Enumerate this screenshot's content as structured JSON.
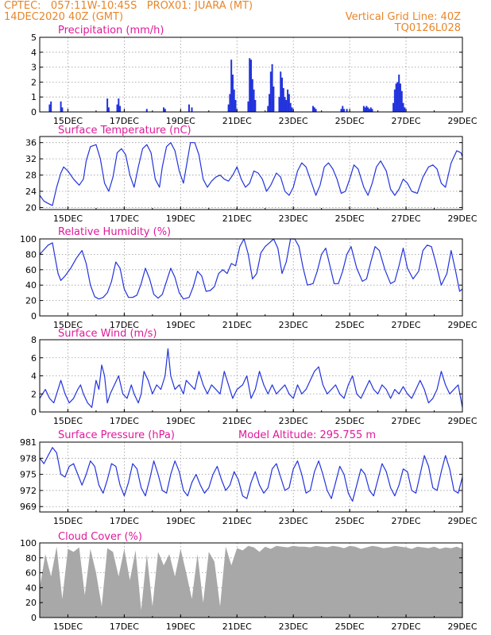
{
  "header": {
    "left_line1": "CPTEC:   057:11W-10:45S   PROX01: JUARA (MT)",
    "left_line2": "14DEC2020 40Z (GMT)",
    "right_line1": "Vertical Grid Line: 40Z",
    "right_line2": "TQ0126L028"
  },
  "colors": {
    "title": "#e0199a",
    "series": "#2233dd",
    "cloud": "#a8a8a8",
    "header": "#e8862a",
    "grid": "#9a9a9a"
  },
  "x_axis": {
    "ticks": [
      "15DEC",
      "17DEC",
      "19DEC",
      "21DEC",
      "23DEC",
      "25DEC",
      "27DEC",
      "29DEC"
    ],
    "tick_days": [
      15,
      17,
      19,
      21,
      23,
      25,
      27,
      29
    ],
    "range_days": [
      14.0,
      29.0
    ]
  },
  "chart_data": [
    {
      "type": "bar",
      "title": "Precipitation (mm/h)",
      "ylim": [
        0,
        5
      ],
      "yticks": [
        0,
        1,
        2,
        3,
        4,
        5
      ],
      "x": [
        14.35,
        14.4,
        14.75,
        14.8,
        16.4,
        16.45,
        16.75,
        16.8,
        16.85,
        17.8,
        18.4,
        18.45,
        19.3,
        19.4,
        20.7,
        20.75,
        20.8,
        20.85,
        20.9,
        20.95,
        21.4,
        21.45,
        21.5,
        21.55,
        21.6,
        21.65,
        22.1,
        22.15,
        22.2,
        22.25,
        22.3,
        22.5,
        22.55,
        22.6,
        22.65,
        22.7,
        22.75,
        22.8,
        22.85,
        22.9,
        22.95,
        23.7,
        23.75,
        23.8,
        24.7,
        24.75,
        24.8,
        24.9,
        25.5,
        25.55,
        25.6,
        25.65,
        25.7,
        25.75,
        25.8,
        26.55,
        26.6,
        26.65,
        26.7,
        26.75,
        26.8,
        26.85,
        26.9,
        26.95
      ],
      "values": [
        0.5,
        0.7,
        0.7,
        0.3,
        0.9,
        0.3,
        0.5,
        0.9,
        0.4,
        0.2,
        0.3,
        0.2,
        0.5,
        0.3,
        0.5,
        1.2,
        3.5,
        2.5,
        1.5,
        0.8,
        0.7,
        3.6,
        3.5,
        2.2,
        1.5,
        0.8,
        0.4,
        1.2,
        2.7,
        3.2,
        1.7,
        1.0,
        2.7,
        2.3,
        1.6,
        1.0,
        0.8,
        1.5,
        1.2,
        0.6,
        0.3,
        0.4,
        0.3,
        0.2,
        0.2,
        0.4,
        0.2,
        0.2,
        0.4,
        0.3,
        0.4,
        0.3,
        0.2,
        0.3,
        0.2,
        0.6,
        1.5,
        1.9,
        2.0,
        2.5,
        1.9,
        1.4,
        0.6,
        0.3
      ]
    },
    {
      "type": "line",
      "title": "Surface Temperature (nC)",
      "ylim": [
        19.5,
        37.5
      ],
      "yticks": [
        20,
        24,
        28,
        32,
        36
      ],
      "x": [
        14.0,
        14.15,
        14.3,
        14.45,
        14.6,
        14.75,
        14.85,
        15.0,
        15.2,
        15.4,
        15.55,
        15.65,
        15.8,
        16.0,
        16.15,
        16.3,
        16.45,
        16.6,
        16.75,
        16.9,
        17.05,
        17.2,
        17.35,
        17.5,
        17.65,
        17.8,
        17.95,
        18.1,
        18.25,
        18.35,
        18.5,
        18.65,
        18.8,
        18.95,
        19.1,
        19.25,
        19.35,
        19.5,
        19.65,
        19.8,
        19.95,
        20.1,
        20.25,
        20.4,
        20.55,
        20.7,
        20.85,
        21.0,
        21.15,
        21.3,
        21.45,
        21.6,
        21.75,
        21.9,
        22.05,
        22.2,
        22.4,
        22.55,
        22.7,
        22.85,
        23.0,
        23.15,
        23.3,
        23.45,
        23.6,
        23.8,
        23.95,
        24.1,
        24.25,
        24.4,
        24.55,
        24.7,
        24.85,
        25.0,
        25.15,
        25.3,
        25.5,
        25.65,
        25.8,
        25.95,
        26.1,
        26.3,
        26.45,
        26.6,
        26.75,
        26.9,
        27.05,
        27.2,
        27.4,
        27.6,
        27.8,
        27.95,
        28.1,
        28.25,
        28.4,
        28.6,
        28.8,
        28.95,
        29.0
      ],
      "values": [
        23.0,
        21.6,
        21.0,
        20.5,
        25.0,
        28.5,
        30.0,
        29.0,
        27.0,
        25.5,
        27.0,
        31.5,
        35.0,
        35.5,
        32.0,
        26.0,
        24.0,
        27.5,
        33.5,
        34.5,
        33.0,
        28.0,
        25.0,
        30.0,
        34.5,
        35.5,
        33.5,
        27.0,
        25.0,
        30.0,
        35.0,
        36.0,
        34.0,
        29.0,
        26.0,
        32.0,
        36.0,
        36.0,
        33.0,
        27.0,
        25.0,
        26.5,
        27.5,
        28.0,
        27.0,
        26.5,
        28.0,
        30.0,
        27.0,
        25.0,
        26.0,
        29.0,
        28.5,
        27.0,
        24.0,
        25.5,
        28.5,
        27.5,
        24.0,
        23.0,
        25.0,
        29.0,
        31.0,
        30.0,
        27.0,
        23.0,
        25.5,
        30.0,
        31.0,
        29.5,
        27.0,
        23.5,
        24.0,
        27.0,
        30.5,
        29.5,
        25.0,
        23.0,
        26.0,
        30.0,
        31.5,
        29.0,
        24.5,
        23.0,
        24.5,
        27.0,
        26.0,
        24.0,
        23.5,
        27.5,
        30.0,
        30.5,
        29.5,
        26.0,
        25.0,
        31.0,
        34.0,
        33.5,
        32.5
      ]
    },
    {
      "type": "line",
      "title": "Relative Humidity (%)",
      "ylim": [
        0,
        100
      ],
      "yticks": [
        0,
        20,
        40,
        60,
        80,
        100
      ],
      "x": [
        14.0,
        14.15,
        14.3,
        14.45,
        14.55,
        14.65,
        14.75,
        14.9,
        15.1,
        15.3,
        15.5,
        15.65,
        15.8,
        15.95,
        16.1,
        16.25,
        16.4,
        16.55,
        16.7,
        16.85,
        17.0,
        17.15,
        17.3,
        17.45,
        17.6,
        17.75,
        17.9,
        18.05,
        18.2,
        18.35,
        18.5,
        18.65,
        18.8,
        18.95,
        19.1,
        19.3,
        19.45,
        19.6,
        19.75,
        19.9,
        20.05,
        20.2,
        20.35,
        20.5,
        20.65,
        20.8,
        20.95,
        21.1,
        21.25,
        21.4,
        21.55,
        21.7,
        21.85,
        22.0,
        22.15,
        22.3,
        22.45,
        22.6,
        22.75,
        22.9,
        23.05,
        23.2,
        23.35,
        23.5,
        23.7,
        23.85,
        24.0,
        24.15,
        24.3,
        24.45,
        24.6,
        24.75,
        24.9,
        25.05,
        25.25,
        25.45,
        25.6,
        25.75,
        25.9,
        26.05,
        26.25,
        26.45,
        26.6,
        26.75,
        26.9,
        27.05,
        27.25,
        27.45,
        27.6,
        27.75,
        27.9,
        28.05,
        28.25,
        28.45,
        28.6,
        28.75,
        28.9,
        29.0
      ],
      "values": [
        80,
        86,
        92,
        95,
        75,
        55,
        46,
        52,
        62,
        75,
        85,
        68,
        40,
        25,
        22,
        24,
        30,
        45,
        70,
        62,
        35,
        24,
        24,
        27,
        42,
        62,
        48,
        28,
        23,
        28,
        45,
        62,
        50,
        30,
        22,
        24,
        38,
        58,
        52,
        32,
        33,
        38,
        55,
        60,
        55,
        68,
        65,
        90,
        100,
        80,
        48,
        55,
        82,
        90,
        95,
        100,
        88,
        55,
        70,
        100,
        100,
        90,
        62,
        40,
        42,
        58,
        80,
        88,
        65,
        42,
        42,
        58,
        80,
        90,
        62,
        45,
        48,
        70,
        90,
        85,
        60,
        42,
        45,
        65,
        88,
        62,
        48,
        58,
        85,
        92,
        90,
        70,
        40,
        55,
        85,
        60,
        32,
        35
      ]
    },
    {
      "type": "line",
      "title": "Surface Wind (m/s)",
      "ylim": [
        0,
        8
      ],
      "yticks": [
        0,
        2,
        4,
        6,
        8
      ],
      "x": [
        14.0,
        14.2,
        14.35,
        14.5,
        14.6,
        14.75,
        14.9,
        15.05,
        15.2,
        15.35,
        15.45,
        15.55,
        15.7,
        15.85,
        16.0,
        16.1,
        16.2,
        16.3,
        16.4,
        16.5,
        16.65,
        16.8,
        16.95,
        17.1,
        17.25,
        17.35,
        17.5,
        17.6,
        17.7,
        17.85,
        18.0,
        18.15,
        18.3,
        18.45,
        18.55,
        18.65,
        18.8,
        18.95,
        19.1,
        19.2,
        19.35,
        19.5,
        19.65,
        19.8,
        19.95,
        20.1,
        20.25,
        20.4,
        20.55,
        20.7,
        20.85,
        21.0,
        21.2,
        21.35,
        21.5,
        21.65,
        21.8,
        21.95,
        22.1,
        22.25,
        22.4,
        22.55,
        22.7,
        22.85,
        23.0,
        23.15,
        23.3,
        23.45,
        23.6,
        23.75,
        23.9,
        24.05,
        24.2,
        24.35,
        24.5,
        24.65,
        24.8,
        24.95,
        25.1,
        25.25,
        25.4,
        25.55,
        25.7,
        25.85,
        26.0,
        26.15,
        26.3,
        26.45,
        26.6,
        26.75,
        26.9,
        27.05,
        27.2,
        27.35,
        27.5,
        27.65,
        27.8,
        27.95,
        28.1,
        28.25,
        28.4,
        28.55,
        28.7,
        28.85,
        29.0
      ],
      "values": [
        1.5,
        2.5,
        1.5,
        1.0,
        2.0,
        3.5,
        2.0,
        1.0,
        1.5,
        2.5,
        3.0,
        2.0,
        1.0,
        0.5,
        3.5,
        2.5,
        5.2,
        4.0,
        1.0,
        2.0,
        3.0,
        4.0,
        2.0,
        1.5,
        3.0,
        2.0,
        1.0,
        2.0,
        4.5,
        3.5,
        2.0,
        3.0,
        2.5,
        4.0,
        7.0,
        4.0,
        2.5,
        3.0,
        2.0,
        3.5,
        3.0,
        2.5,
        4.5,
        3.0,
        2.0,
        3.0,
        2.5,
        2.0,
        4.5,
        3.0,
        1.5,
        2.5,
        3.0,
        4.0,
        1.5,
        2.5,
        4.5,
        3.0,
        2.0,
        3.0,
        2.0,
        2.5,
        3.0,
        2.0,
        1.5,
        3.0,
        2.0,
        2.5,
        3.5,
        4.5,
        5.0,
        3.0,
        2.0,
        2.5,
        3.0,
        2.0,
        1.5,
        3.0,
        4.0,
        2.0,
        1.5,
        2.5,
        3.5,
        2.5,
        2.0,
        3.0,
        2.5,
        1.5,
        2.5,
        2.0,
        2.8,
        2.0,
        1.5,
        2.5,
        3.5,
        2.5,
        1.0,
        1.5,
        2.5,
        4.5,
        3.0,
        2.0,
        2.5,
        3.0,
        0.5
      ]
    },
    {
      "type": "line",
      "title": "Surface Pressure (hPa)",
      "annotation": "Model Altitude: 295.755 m",
      "ylim": [
        968,
        981
      ],
      "yticks": [
        969,
        972,
        975,
        978,
        981
      ],
      "x": [
        14.0,
        14.15,
        14.3,
        14.45,
        14.6,
        14.75,
        14.9,
        15.05,
        15.2,
        15.35,
        15.5,
        15.65,
        15.8,
        15.95,
        16.1,
        16.25,
        16.4,
        16.55,
        16.7,
        16.85,
        17.0,
        17.15,
        17.3,
        17.45,
        17.6,
        17.75,
        17.9,
        18.05,
        18.2,
        18.35,
        18.5,
        18.65,
        18.8,
        18.95,
        19.1,
        19.25,
        19.4,
        19.55,
        19.7,
        19.85,
        20.0,
        20.15,
        20.3,
        20.45,
        20.6,
        20.75,
        20.9,
        21.05,
        21.2,
        21.35,
        21.5,
        21.65,
        21.8,
        21.95,
        22.1,
        22.25,
        22.4,
        22.55,
        22.7,
        22.85,
        23.0,
        23.15,
        23.3,
        23.45,
        23.6,
        23.75,
        23.9,
        24.05,
        24.2,
        24.35,
        24.5,
        24.65,
        24.8,
        24.95,
        25.1,
        25.25,
        25.4,
        25.55,
        25.7,
        25.85,
        26.0,
        26.15,
        26.3,
        26.45,
        26.6,
        26.75,
        26.9,
        27.05,
        27.2,
        27.35,
        27.5,
        27.65,
        27.8,
        27.95,
        28.1,
        28.25,
        28.4,
        28.55,
        28.7,
        28.85,
        29.0
      ],
      "values": [
        978.0,
        977.0,
        978.5,
        980.0,
        979.0,
        975.0,
        974.5,
        976.5,
        977.0,
        975.0,
        973.0,
        975.0,
        977.5,
        976.5,
        973.0,
        971.5,
        974.0,
        977.0,
        976.5,
        973.0,
        971.0,
        973.5,
        977.0,
        976.0,
        972.5,
        971.0,
        974.0,
        977.5,
        975.0,
        972.0,
        971.5,
        975.0,
        977.5,
        975.5,
        972.0,
        971.0,
        973.5,
        975.0,
        973.0,
        971.5,
        972.5,
        975.0,
        976.5,
        974.0,
        972.0,
        973.0,
        975.5,
        974.0,
        971.0,
        970.5,
        973.5,
        975.5,
        973.0,
        971.5,
        972.5,
        976.0,
        977.0,
        974.5,
        972.0,
        972.5,
        976.0,
        977.5,
        975.0,
        971.5,
        972.0,
        975.5,
        977.5,
        975.0,
        972.0,
        970.5,
        973.5,
        976.5,
        975.0,
        971.5,
        970.0,
        973.0,
        976.0,
        975.0,
        972.0,
        971.0,
        974.0,
        977.0,
        975.5,
        972.5,
        971.0,
        973.0,
        976.0,
        975.5,
        972.0,
        971.5,
        975.0,
        978.5,
        976.5,
        972.5,
        972.0,
        975.5,
        978.5,
        976.0,
        972.0,
        971.5,
        974.5
      ]
    },
    {
      "type": "area",
      "title": "Cloud Cover (%)",
      "ylim": [
        0,
        100
      ],
      "yticks": [
        0,
        20,
        40,
        60,
        80,
        100
      ],
      "x": [
        14.0,
        14.2,
        14.4,
        14.6,
        14.8,
        15.0,
        15.2,
        15.4,
        15.6,
        15.8,
        16.0,
        16.2,
        16.4,
        16.6,
        16.8,
        17.0,
        17.2,
        17.4,
        17.6,
        17.8,
        18.0,
        18.2,
        18.4,
        18.6,
        18.8,
        19.0,
        19.2,
        19.4,
        19.6,
        19.8,
        20.0,
        20.2,
        20.4,
        20.6,
        20.8,
        21.0,
        21.2,
        21.4,
        21.6,
        21.8,
        22.0,
        22.2,
        22.4,
        22.6,
        22.8,
        23.0,
        23.2,
        23.4,
        23.6,
        23.8,
        24.0,
        24.2,
        24.4,
        24.6,
        24.8,
        25.0,
        25.2,
        25.4,
        25.6,
        25.8,
        26.0,
        26.2,
        26.4,
        26.6,
        26.8,
        27.0,
        27.2,
        27.4,
        27.6,
        27.8,
        28.0,
        28.2,
        28.4,
        28.6,
        28.8,
        29.0
      ],
      "values": [
        40,
        85,
        55,
        95,
        25,
        92,
        88,
        94,
        30,
        92,
        60,
        15,
        93,
        88,
        55,
        92,
        50,
        90,
        10,
        85,
        15,
        88,
        70,
        85,
        55,
        92,
        60,
        25,
        85,
        20,
        88,
        75,
        15,
        95,
        70,
        93,
        90,
        96,
        94,
        88,
        95,
        92,
        96,
        95,
        94,
        96,
        95,
        95,
        94,
        96,
        95,
        94,
        96,
        95,
        93,
        96,
        95,
        92,
        94,
        96,
        95,
        93,
        94,
        96,
        95,
        94,
        92,
        95,
        94,
        93,
        95,
        92,
        94,
        93,
        95,
        92
      ]
    }
  ]
}
